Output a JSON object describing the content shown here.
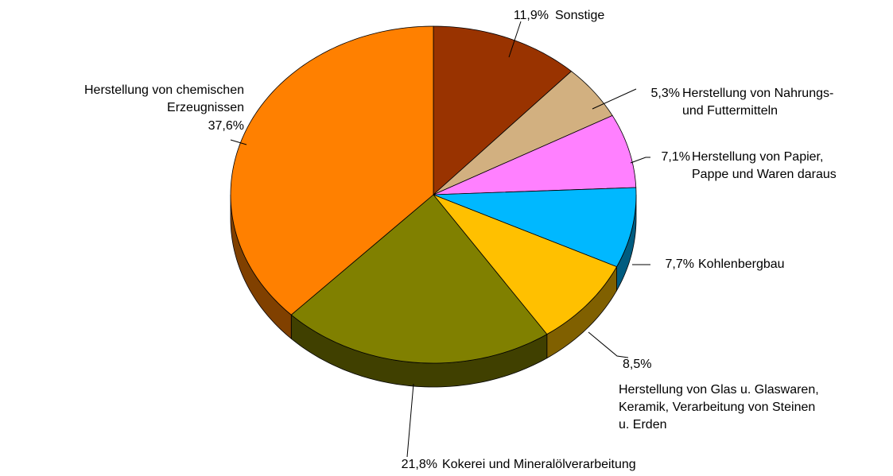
{
  "chart_data": {
    "type": "pie",
    "categories": [
      "Sonstige",
      "Herstellung von Nahrungs-\nund Futtermitteln",
      "Herstellung von Papier,\nPappe und Waren daraus",
      "Kohlenbergbau",
      "Herstellung von Glas u. Glaswaren,\nKeramik, Verarbeitung von Steinen\nu. Erden",
      "Kokerei und Mineralölverarbeitung",
      "Herstellung von chemischen\nErzeugnissen"
    ],
    "values": [
      11.9,
      5.3,
      7.1,
      7.7,
      8.5,
      21.8,
      37.6
    ],
    "value_labels": [
      "11,9%",
      "5,3%",
      "7,1%",
      "7,7%",
      "8,5%",
      "21,8%",
      "37,6%"
    ],
    "colors": [
      "#993300",
      "#d2b080",
      "#ff80ff",
      "#00b8ff",
      "#ffc000",
      "#808000",
      "#ff8000"
    ]
  }
}
